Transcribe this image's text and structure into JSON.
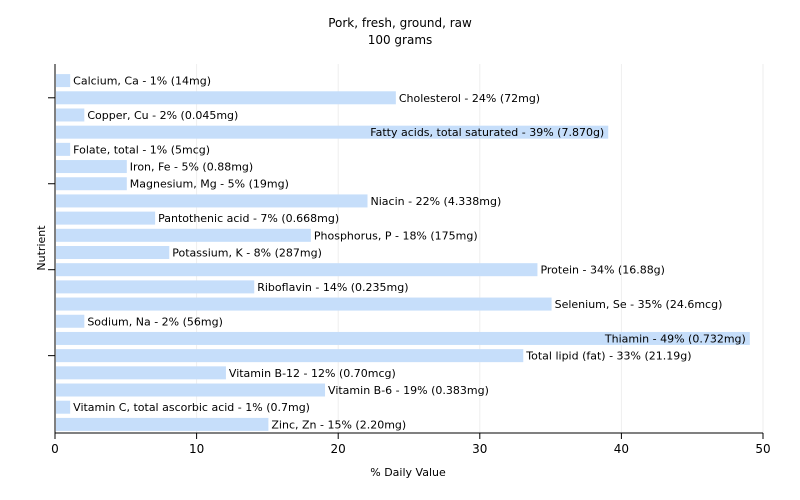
{
  "chart_data": {
    "type": "bar",
    "orientation": "horizontal",
    "title": "Pork, fresh, ground, raw",
    "subtitle": "100 grams",
    "xlabel": "% Daily Value",
    "ylabel": "Nutrient",
    "xlim": [
      0,
      50
    ],
    "xticks": [
      "0",
      "10",
      "20",
      "30",
      "40",
      "50"
    ],
    "grid": true,
    "bar_color": "#c6defa",
    "grid_color": "#eeeeee",
    "categories": [
      "Calcium, Ca",
      "Cholesterol",
      "Copper, Cu",
      "Fatty acids, total saturated",
      "Folate, total",
      "Iron, Fe",
      "Magnesium, Mg",
      "Niacin",
      "Pantothenic acid",
      "Phosphorus, P",
      "Potassium, K",
      "Protein",
      "Riboflavin",
      "Selenium, Se",
      "Sodium, Na",
      "Thiamin",
      "Total lipid (fat)",
      "Vitamin B-12",
      "Vitamin B-6",
      "Vitamin C, total ascorbic acid",
      "Zinc, Zn"
    ],
    "values": [
      1,
      24,
      2,
      39,
      1,
      5,
      5,
      22,
      7,
      18,
      8,
      34,
      14,
      35,
      2,
      49,
      33,
      12,
      19,
      1,
      15
    ],
    "labels": [
      "Calcium, Ca - 1% (14mg)",
      "Cholesterol - 24% (72mg)",
      "Copper, Cu - 2% (0.045mg)",
      "Fatty acids, total saturated - 39% (7.870g)",
      "Folate, total - 1% (5mcg)",
      "Iron, Fe - 5% (0.88mg)",
      "Magnesium, Mg - 5% (19mg)",
      "Niacin - 22% (4.338mg)",
      "Pantothenic acid - 7% (0.668mg)",
      "Phosphorus, P - 18% (175mg)",
      "Potassium, K - 8% (287mg)",
      "Protein - 34% (16.88g)",
      "Riboflavin - 14% (0.235mg)",
      "Selenium, Se - 35% (24.6mcg)",
      "Sodium, Na - 2% (56mg)",
      "Thiamin - 49% (0.732mg)",
      "Total lipid (fat) - 33% (21.19g)",
      "Vitamin B-12 - 12% (0.70mcg)",
      "Vitamin B-6 - 19% (0.383mg)",
      "Vitamin C, total ascorbic acid - 1% (0.7mg)",
      "Zinc, Zn - 15% (2.20mg)"
    ]
  }
}
